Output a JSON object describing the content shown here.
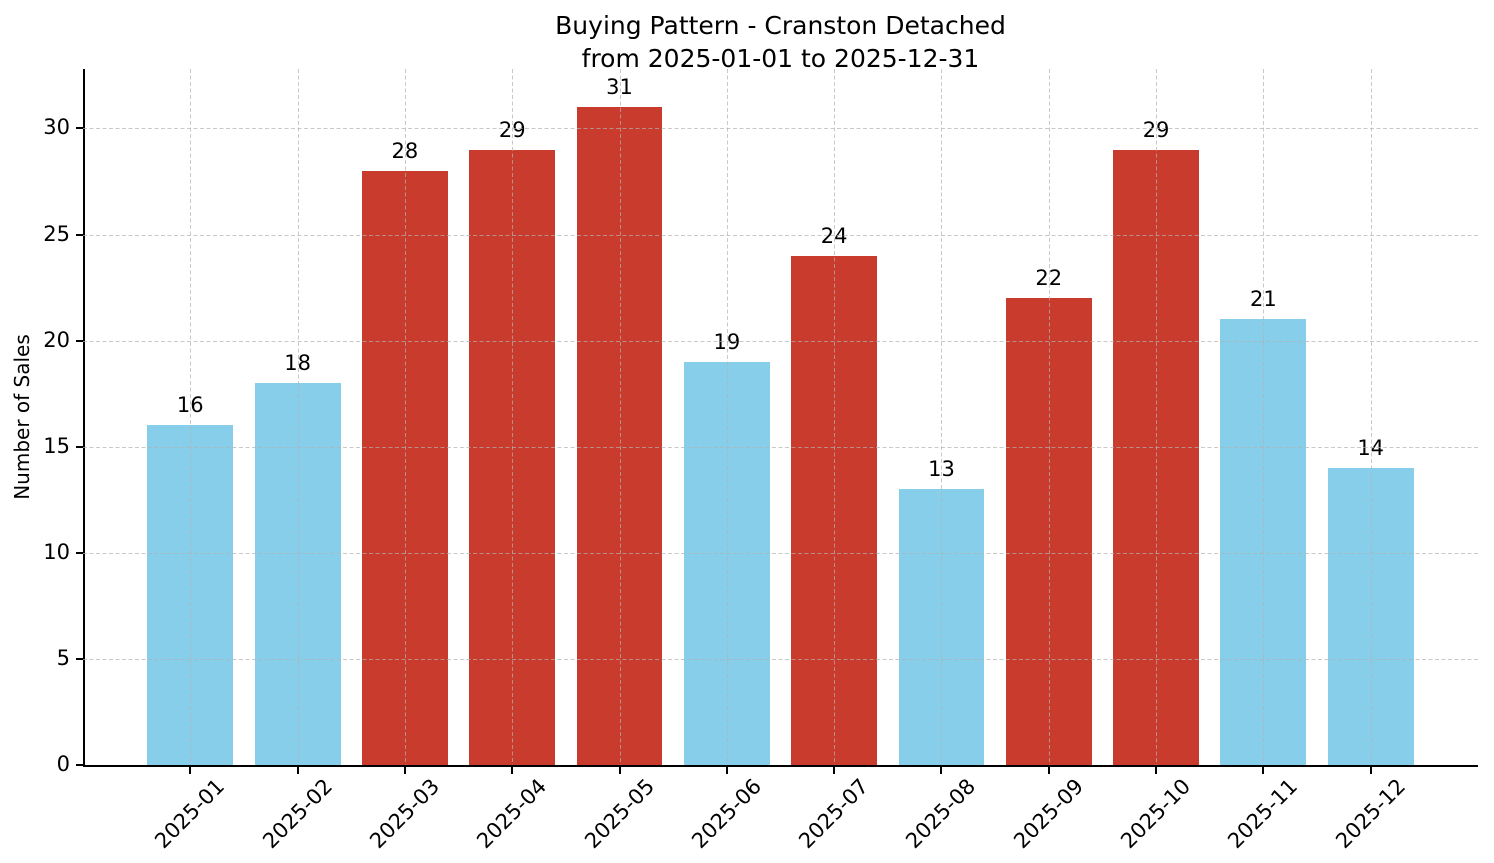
{
  "title": {
    "line1": "Buying Pattern - Cranston Detached",
    "line2": "from 2025-01-01 to 2025-12-31"
  },
  "chart_data": {
    "type": "bar",
    "title": "Buying Pattern - Cranston Detached from 2025-01-01 to 2025-12-31",
    "categories": [
      "2025-01",
      "2025-02",
      "2025-03",
      "2025-04",
      "2025-05",
      "2025-06",
      "2025-07",
      "2025-08",
      "2025-09",
      "2025-10",
      "2025-11",
      "2025-12"
    ],
    "values": [
      16,
      18,
      28,
      29,
      31,
      19,
      24,
      13,
      22,
      29,
      21,
      14
    ],
    "bar_colors": [
      "#87CEEB",
      "#87CEEB",
      "#C93B2C",
      "#C93B2C",
      "#C93B2C",
      "#87CEEB",
      "#C93B2C",
      "#87CEEB",
      "#C93B2C",
      "#C93B2C",
      "#87CEEB",
      "#87CEEB"
    ],
    "color_legend": {
      "low_month": "#87CEEB",
      "high_month": "#C93B2C"
    },
    "xlabel": "",
    "ylabel": "Number of Sales",
    "yticks": [
      0,
      5,
      10,
      15,
      20,
      25,
      30
    ],
    "ylim": [
      0,
      32.8
    ],
    "grid": "dashed",
    "value_labels": [
      16,
      18,
      28,
      29,
      31,
      19,
      24,
      13,
      22,
      29,
      21,
      14
    ]
  }
}
